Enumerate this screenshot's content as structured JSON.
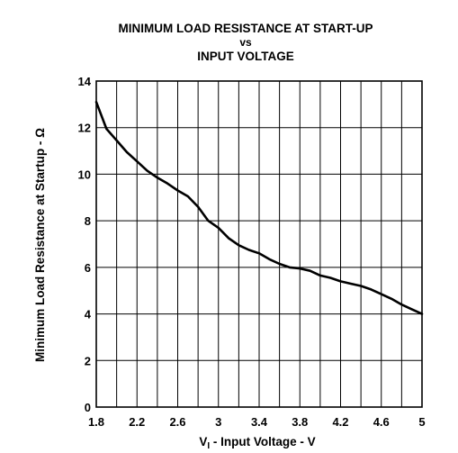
{
  "chart_data": {
    "type": "line",
    "title_lines": [
      "MINIMUM LOAD RESISTANCE AT START-UP",
      "vs",
      "INPUT VOLTAGE"
    ],
    "xlabel": {
      "main": "V",
      "subscript": "I",
      "rest": " - Input Voltage - V"
    },
    "ylabel": "Minimum Load Resistance at Startup -  Ω",
    "xlim": [
      1.8,
      5
    ],
    "ylim": [
      0,
      14
    ],
    "x_ticks": [
      1.8,
      2.2,
      2.6,
      3,
      3.4,
      3.8,
      4.2,
      4.6,
      5
    ],
    "x_tick_labels": [
      "1.8",
      "2.2",
      "2.6",
      "3",
      "3.4",
      "3.8",
      "4.2",
      "4.6",
      "5"
    ],
    "y_ticks": [
      0,
      2,
      4,
      6,
      8,
      10,
      12,
      14
    ],
    "y_tick_labels": [
      "0",
      "2",
      "4",
      "6",
      "8",
      "10",
      "12",
      "14"
    ],
    "x_grid_step": 0.2,
    "grid": true,
    "series": [
      {
        "x": [
          1.8,
          1.9,
          2.0,
          2.1,
          2.2,
          2.3,
          2.4,
          2.5,
          2.6,
          2.7,
          2.8,
          2.9,
          3.0,
          3.1,
          3.2,
          3.3,
          3.4,
          3.5,
          3.6,
          3.7,
          3.8,
          3.9,
          4.0,
          4.1,
          4.2,
          4.3,
          4.4,
          4.5,
          4.6,
          4.7,
          4.8,
          4.9,
          5.0
        ],
        "y": [
          13.1,
          11.95,
          11.45,
          10.95,
          10.55,
          10.15,
          9.85,
          9.6,
          9.3,
          9.05,
          8.6,
          8.0,
          7.7,
          7.25,
          6.95,
          6.75,
          6.6,
          6.35,
          6.15,
          6.0,
          5.95,
          5.85,
          5.65,
          5.55,
          5.4,
          5.3,
          5.2,
          5.05,
          4.85,
          4.65,
          4.4,
          4.2,
          4.0
        ]
      }
    ]
  }
}
